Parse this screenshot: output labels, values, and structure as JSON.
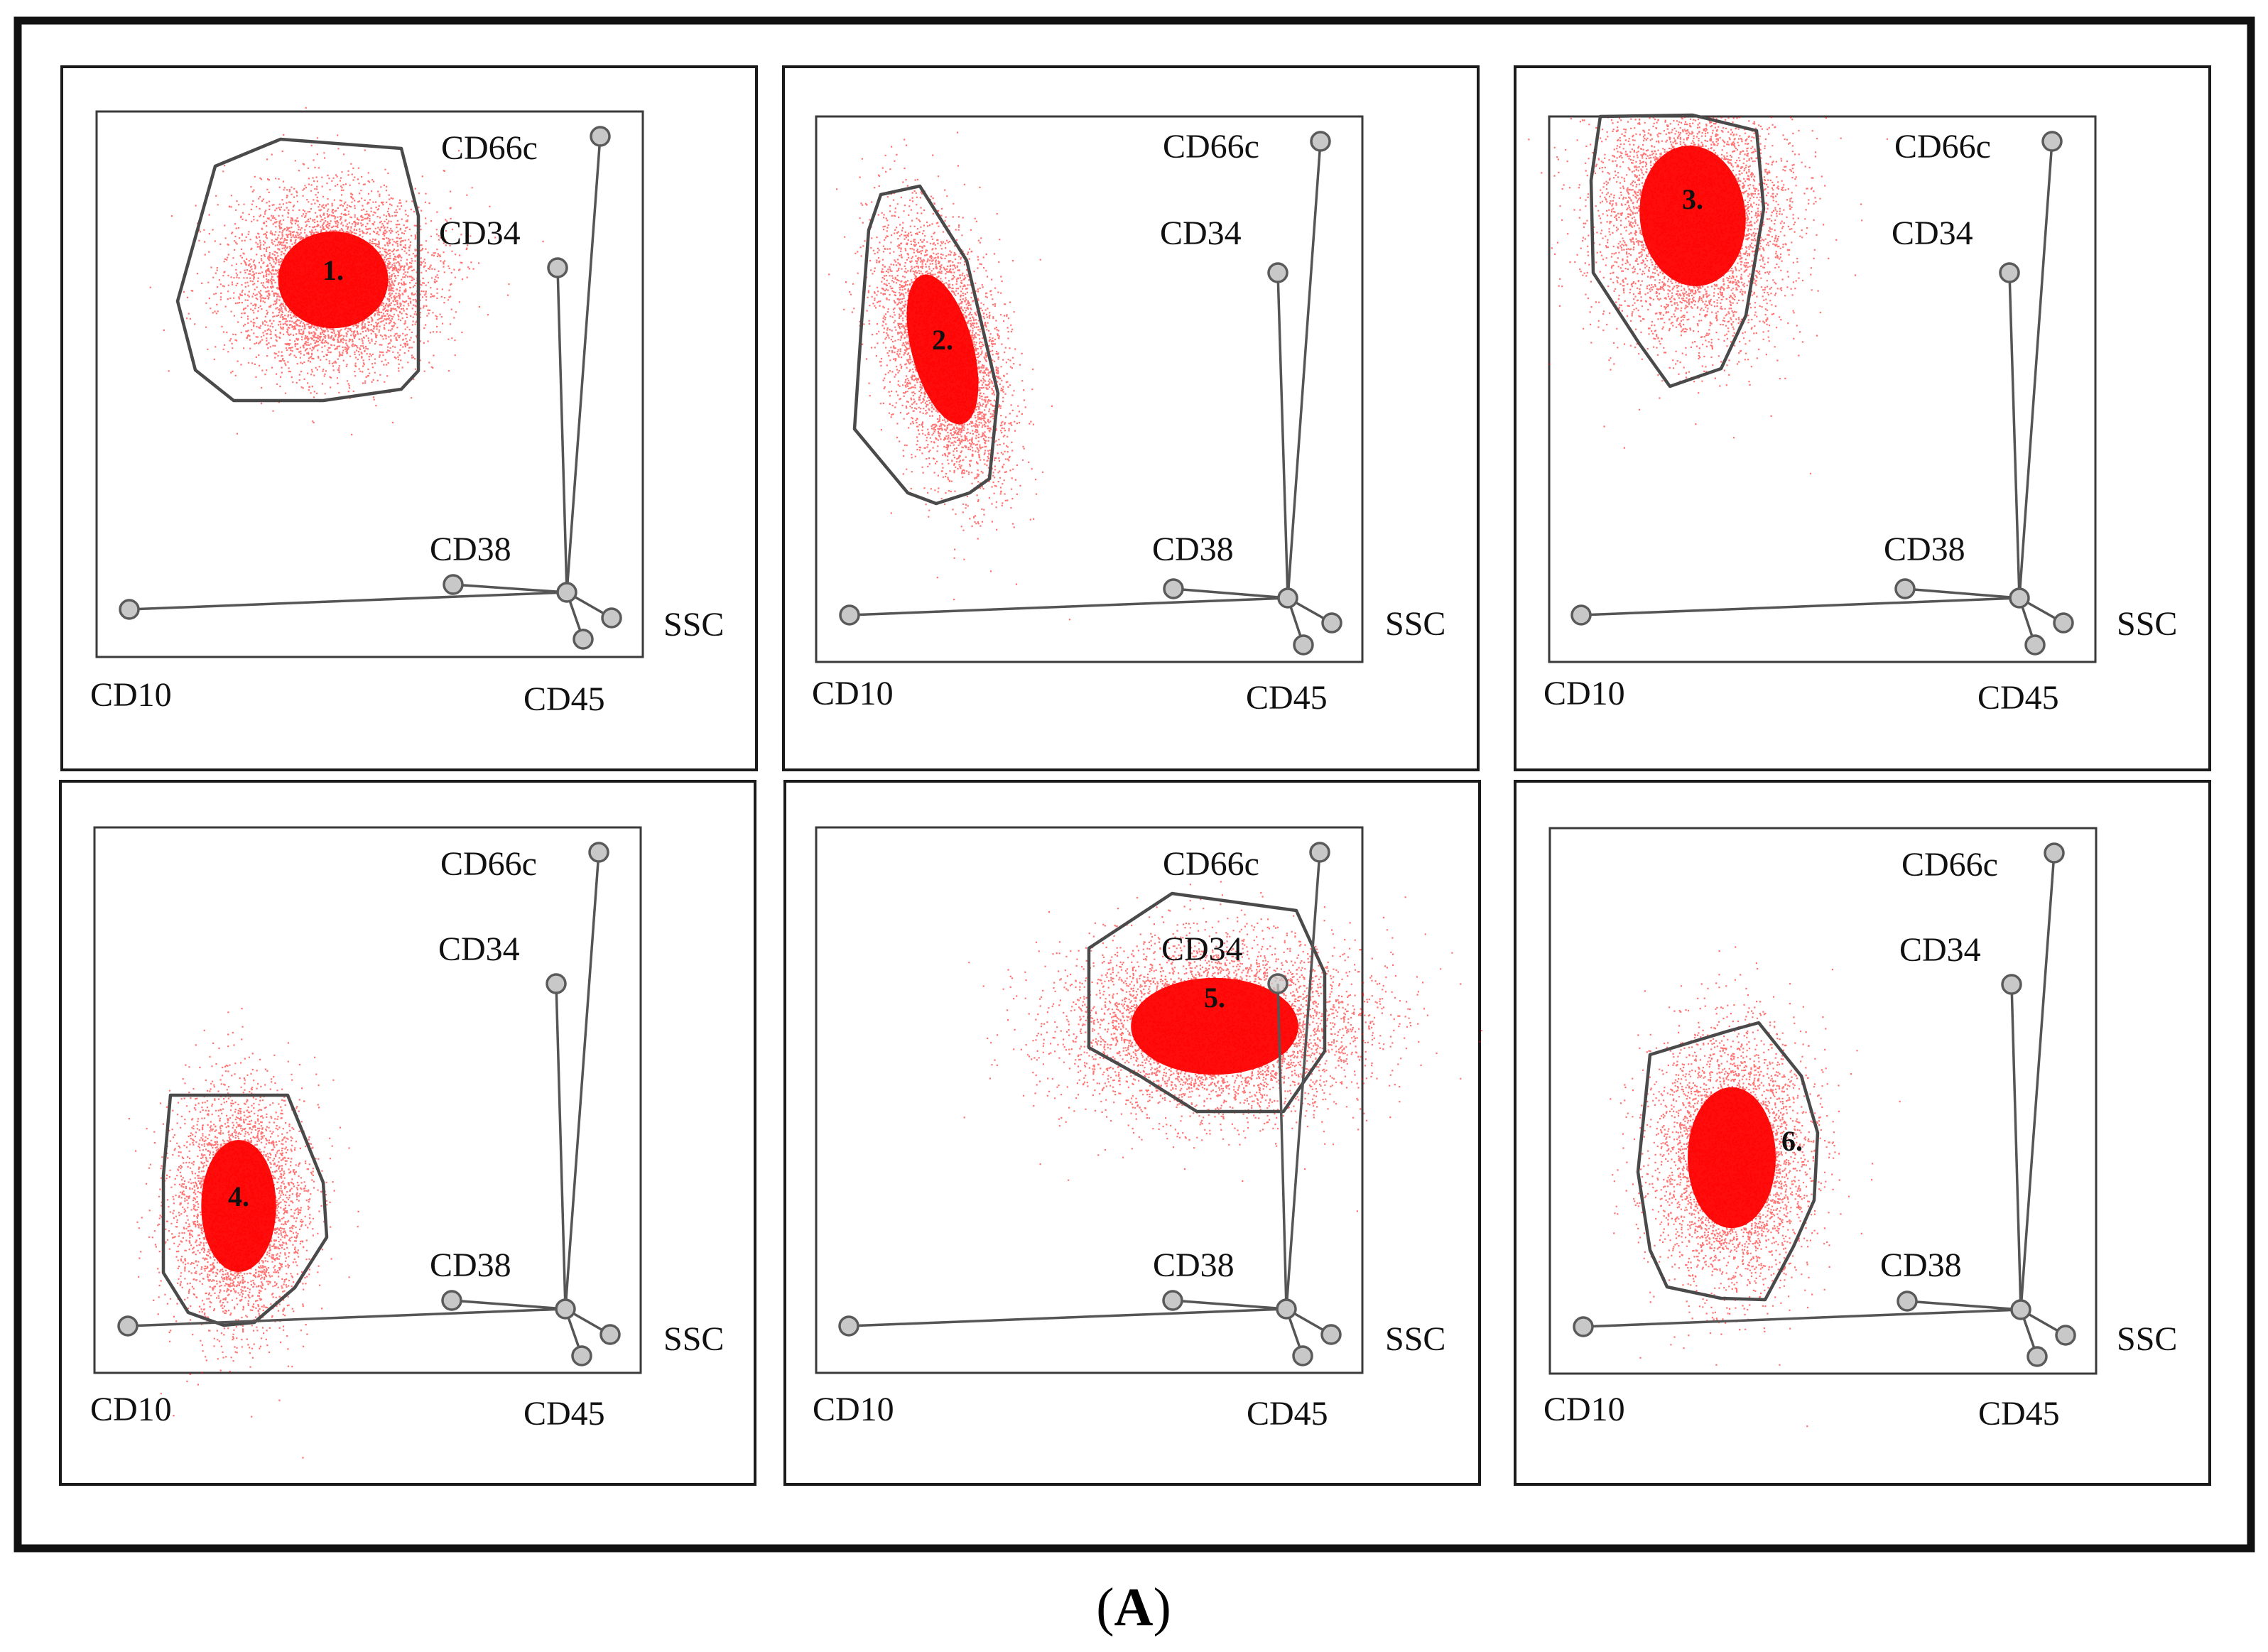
{
  "figure": {
    "caption": "(A)",
    "caption_parts": {
      "open": "(",
      "letter": "A",
      "close": ")"
    },
    "dot_color": "#ff0000",
    "panels": [
      {
        "population_label": "1.",
        "markers": {
          "cd66c": "CD66c",
          "cd34": "CD34",
          "cd38": "CD38",
          "ssc": "SSC",
          "cd10": "CD10",
          "cd45": "CD45"
        }
      },
      {
        "population_label": "2.",
        "markers": {
          "cd66c": "CD66c",
          "cd34": "CD34",
          "cd38": "CD38",
          "ssc": "SSC",
          "cd10": "CD10",
          "cd45": "CD45"
        }
      },
      {
        "population_label": "3.",
        "markers": {
          "cd66c": "CD66c",
          "cd34": "CD34",
          "cd38": "CD38",
          "ssc": "SSC",
          "cd10": "CD10",
          "cd45": "CD45"
        }
      },
      {
        "population_label": "4.",
        "markers": {
          "cd66c": "CD66c",
          "cd34": "CD34",
          "cd38": "CD38",
          "ssc": "SSC",
          "cd10": "CD10",
          "cd45": "CD45"
        }
      },
      {
        "population_label": "5.",
        "markers": {
          "cd66c": "CD66c",
          "cd34": "CD34",
          "cd38": "CD38",
          "ssc": "SSC",
          "cd10": "CD10",
          "cd45": "CD45"
        }
      },
      {
        "population_label": "6.",
        "markers": {
          "cd66c": "CD66c",
          "cd34": "CD34",
          "cd38": "CD38",
          "ssc": "SSC",
          "cd10": "CD10",
          "cd45": "CD45"
        }
      }
    ]
  }
}
